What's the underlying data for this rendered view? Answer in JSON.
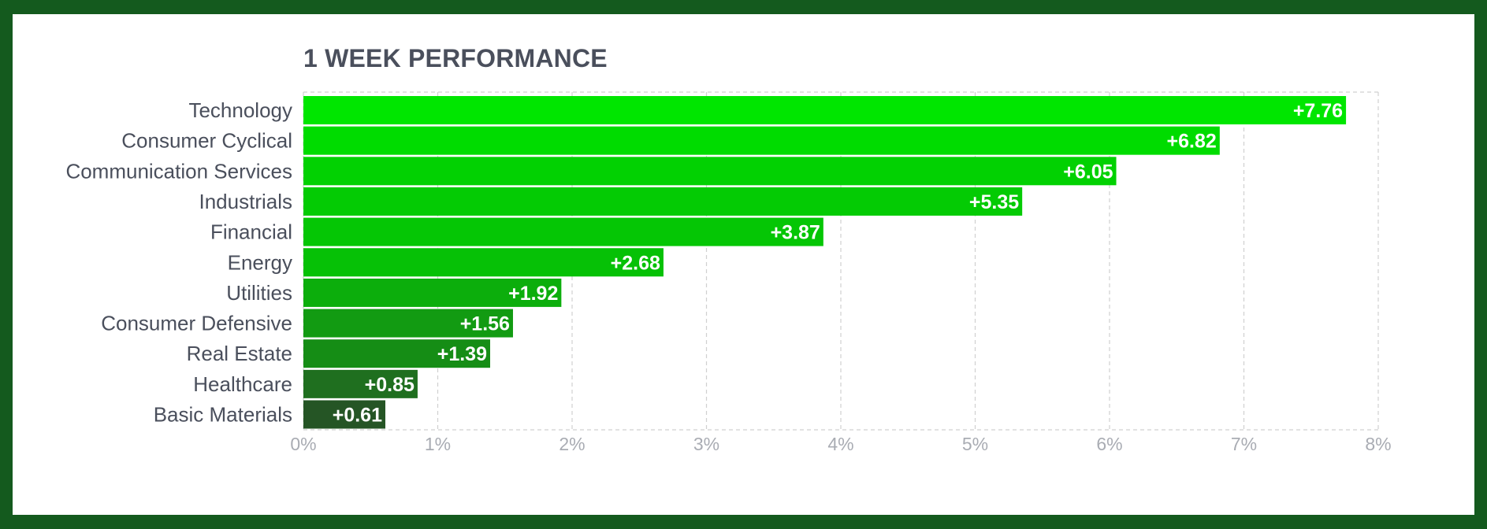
{
  "chart_data": {
    "type": "bar",
    "orientation": "horizontal",
    "title": "1 WEEK PERFORMANCE",
    "categories": [
      "Technology",
      "Consumer Cyclical",
      "Communication Services",
      "Industrials",
      "Financial",
      "Energy",
      "Utilities",
      "Consumer Defensive",
      "Real Estate",
      "Healthcare",
      "Basic Materials"
    ],
    "values": [
      7.76,
      6.82,
      6.05,
      5.35,
      3.87,
      2.68,
      1.92,
      1.56,
      1.39,
      0.85,
      0.61
    ],
    "value_labels": [
      "+7.76",
      "+6.82",
      "+6.05",
      "+5.35",
      "+3.87",
      "+2.68",
      "+1.92",
      "+1.56",
      "+1.39",
      "+0.85",
      "+0.61"
    ],
    "bar_colors": [
      "#00e600",
      "#00dc00",
      "#02d102",
      "#04cb04",
      "#05c605",
      "#06c106",
      "#0cae0c",
      "#129b12",
      "#158d15",
      "#1f6f1f",
      "#255525"
    ],
    "xlim": [
      0,
      8
    ],
    "xticks": [
      "0%",
      "1%",
      "2%",
      "3%",
      "4%",
      "5%",
      "6%",
      "7%",
      "8%"
    ],
    "xlabel": "",
    "ylabel": "",
    "grid": true,
    "legend": "none"
  },
  "colors": {
    "border": "#145a1e",
    "background": "#ffffff",
    "title": "#4a4f5c",
    "grid": "#d0d0d0"
  }
}
